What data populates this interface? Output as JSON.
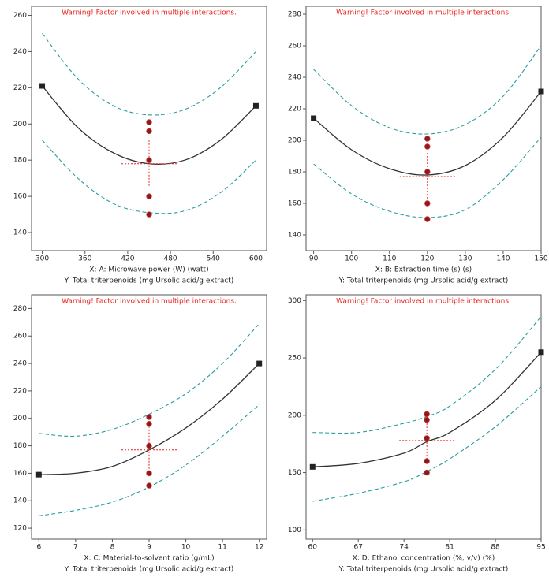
{
  "chart_data": [
    {
      "type": "line",
      "annotation": "Warning! Factor involved in multiple interactions.",
      "xlabel": "X: A: Microwave power (W) (watt)",
      "ylabel": "Y: Total triterpenoids (mg Ursolic acid/g extract)",
      "xlim": [
        285,
        615
      ],
      "xticks": [
        300,
        360,
        420,
        480,
        540,
        600
      ],
      "ylim": [
        130,
        265
      ],
      "yticks": [
        140,
        160,
        180,
        200,
        220,
        240,
        260
      ],
      "x": [
        300,
        350,
        400,
        450,
        500,
        550,
        600
      ],
      "series": [
        {
          "color": "#333333",
          "style": "solid",
          "values": [
            221,
            198,
            184,
            178,
            180,
            191,
            210
          ]
        },
        {
          "color": "#2a9da0",
          "style": "dashed",
          "values": [
            250,
            225,
            210,
            205,
            208,
            220,
            240
          ]
        },
        {
          "color": "#2a9da0",
          "style": "dashed",
          "values": [
            191,
            170,
            156,
            151,
            152,
            162,
            180
          ]
        }
      ],
      "points": {
        "color": "#8b1a1a",
        "x": [
          450,
          450,
          450,
          450,
          450
        ],
        "values": [
          201,
          196,
          180,
          160,
          150
        ]
      },
      "center": {
        "x": 450,
        "y": 178
      }
    },
    {
      "type": "line",
      "annotation": "Warning! Factor involved in multiple interactions.",
      "xlabel": "X: B: Extraction time (s) (s)",
      "ylabel": "Y: Total triterpenoids (mg Ursolic acid/g extract)",
      "xlim": [
        88,
        150
      ],
      "xticks": [
        90,
        100,
        110,
        120,
        130,
        140,
        150
      ],
      "ylim": [
        130,
        285
      ],
      "yticks": [
        140,
        160,
        180,
        200,
        220,
        240,
        260,
        280
      ],
      "x": [
        90,
        100,
        110,
        120,
        130,
        140,
        150
      ],
      "series": [
        {
          "color": "#333333",
          "style": "solid",
          "values": [
            214,
            194,
            182,
            178,
            184,
            202,
            231
          ]
        },
        {
          "color": "#2a9da0",
          "style": "dashed",
          "values": [
            245,
            222,
            208,
            204,
            210,
            228,
            260
          ]
        },
        {
          "color": "#2a9da0",
          "style": "dashed",
          "values": [
            185,
            166,
            155,
            151,
            156,
            175,
            202
          ]
        }
      ],
      "points": {
        "color": "#8b1a1a",
        "x": [
          120,
          120,
          120,
          120,
          120
        ],
        "values": [
          201,
          196,
          180,
          160,
          150
        ]
      },
      "center": {
        "x": 120,
        "y": 177
      }
    },
    {
      "type": "line",
      "annotation": "Warning! Factor involved in multiple interactions.",
      "xlabel": "X: C: Material-to-solvent ratio (g/mL)",
      "ylabel": "Y: Total triterpenoids (mg Ursolic acid/g extract)",
      "xlim": [
        5.8,
        12.2
      ],
      "xticks": [
        6,
        7,
        8,
        9,
        10,
        11,
        12
      ],
      "ylim": [
        112,
        290
      ],
      "yticks": [
        120,
        140,
        160,
        180,
        200,
        220,
        240,
        260,
        280
      ],
      "x": [
        6,
        7,
        8,
        9,
        10,
        11,
        12
      ],
      "series": [
        {
          "color": "#333333",
          "style": "solid",
          "values": [
            159,
            160,
            165,
            177,
            193,
            214,
            240
          ]
        },
        {
          "color": "#2a9da0",
          "style": "dashed",
          "values": [
            189,
            187,
            192,
            203,
            218,
            240,
            269
          ]
        },
        {
          "color": "#2a9da0",
          "style": "dashed",
          "values": [
            129,
            133,
            139,
            150,
            166,
            187,
            210
          ]
        }
      ],
      "points": {
        "color": "#8b1a1a",
        "x": [
          9,
          9,
          9,
          9,
          9
        ],
        "values": [
          201,
          196,
          180,
          160,
          151
        ]
      },
      "center": {
        "x": 9,
        "y": 177
      }
    },
    {
      "type": "line",
      "annotation": "Warning! Factor involved in multiple interactions.",
      "xlabel": "X: D: Ethanol concentration (%, v/v) (%)",
      "ylabel": "Y: Total triterpenoids (mg Ursolic acid/g extract)",
      "xlim": [
        59,
        95
      ],
      "xticks": [
        60,
        67,
        74,
        81,
        88,
        95
      ],
      "ylim": [
        92,
        305
      ],
      "yticks": [
        100,
        150,
        200,
        250,
        300
      ],
      "x": [
        60,
        67,
        74,
        77.5,
        81,
        88,
        95
      ],
      "series": [
        {
          "color": "#333333",
          "style": "solid",
          "values": [
            155,
            158,
            167,
            177,
            185,
            213,
            255
          ]
        },
        {
          "color": "#2a9da0",
          "style": "dashed",
          "values": [
            185,
            185,
            193,
            199,
            208,
            240,
            286
          ]
        },
        {
          "color": "#2a9da0",
          "style": "dashed",
          "values": [
            125,
            132,
            142,
            151,
            162,
            190,
            225
          ]
        }
      ],
      "points": {
        "color": "#8b1a1a",
        "x": [
          77.5,
          77.5,
          77.5,
          77.5,
          77.5
        ],
        "values": [
          201,
          196,
          180,
          160,
          150
        ]
      },
      "center": {
        "x": 77.5,
        "y": 178
      }
    }
  ]
}
